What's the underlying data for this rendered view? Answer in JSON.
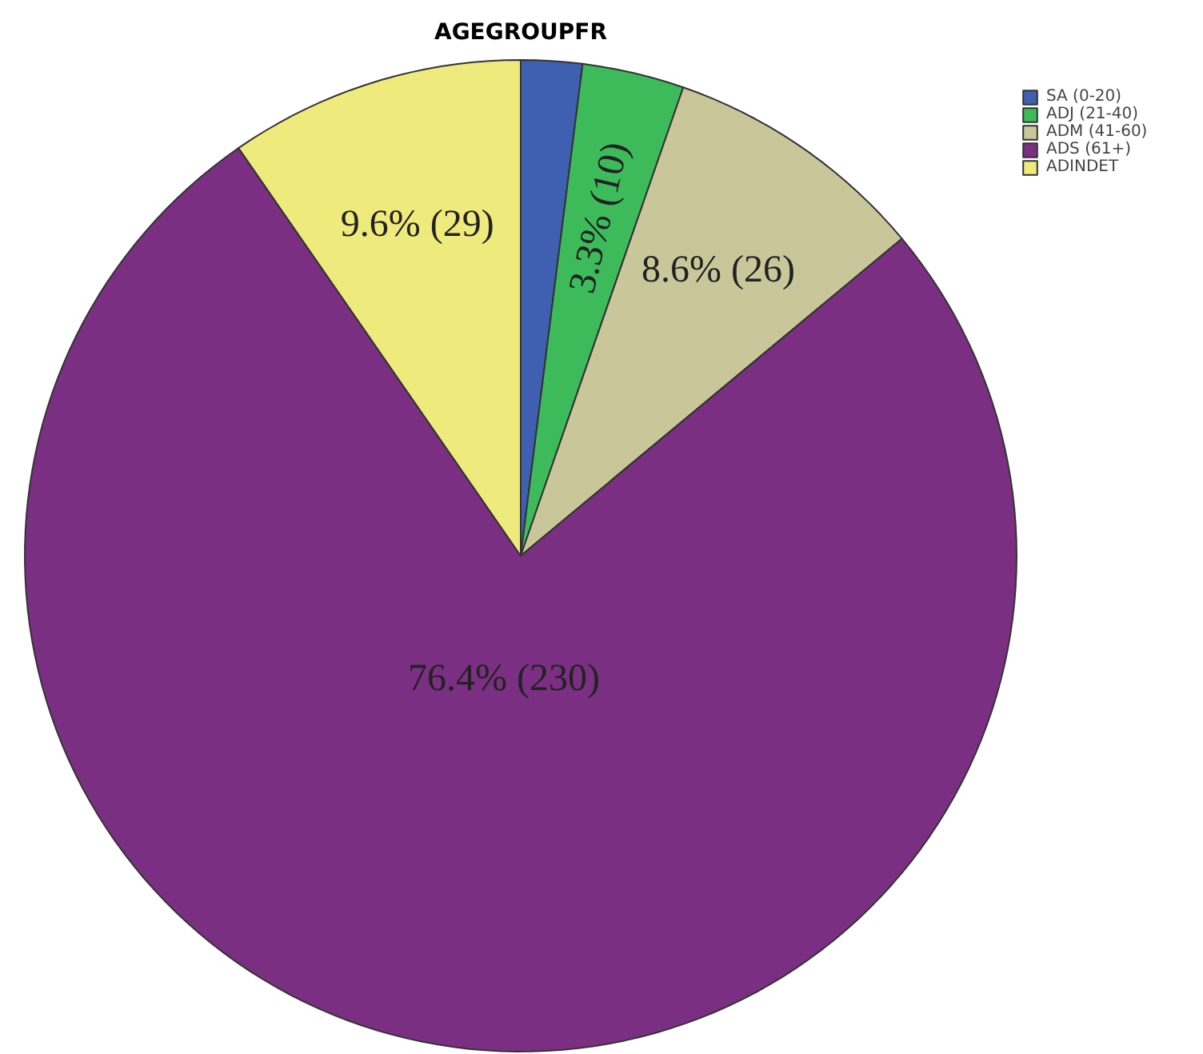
{
  "chart_data": {
    "type": "pie",
    "title": "AGEGROUPFR",
    "categories": [
      "SA (0-20)",
      "ADJ (21-40)",
      "ADM (41-60)",
      "ADS (61+)",
      "ADINDET"
    ],
    "values": [
      6,
      10,
      26,
      230,
      29
    ],
    "colors": [
      "#3f5fb0",
      "#3dbb5a",
      "#c9c79a",
      "#7b2f82",
      "#eeea7c"
    ],
    "value_labels": [
      null,
      "3.3% (10)",
      "8.6% (26)",
      "76.4% (230)",
      "9.6% (29)"
    ],
    "legend": "top right"
  }
}
